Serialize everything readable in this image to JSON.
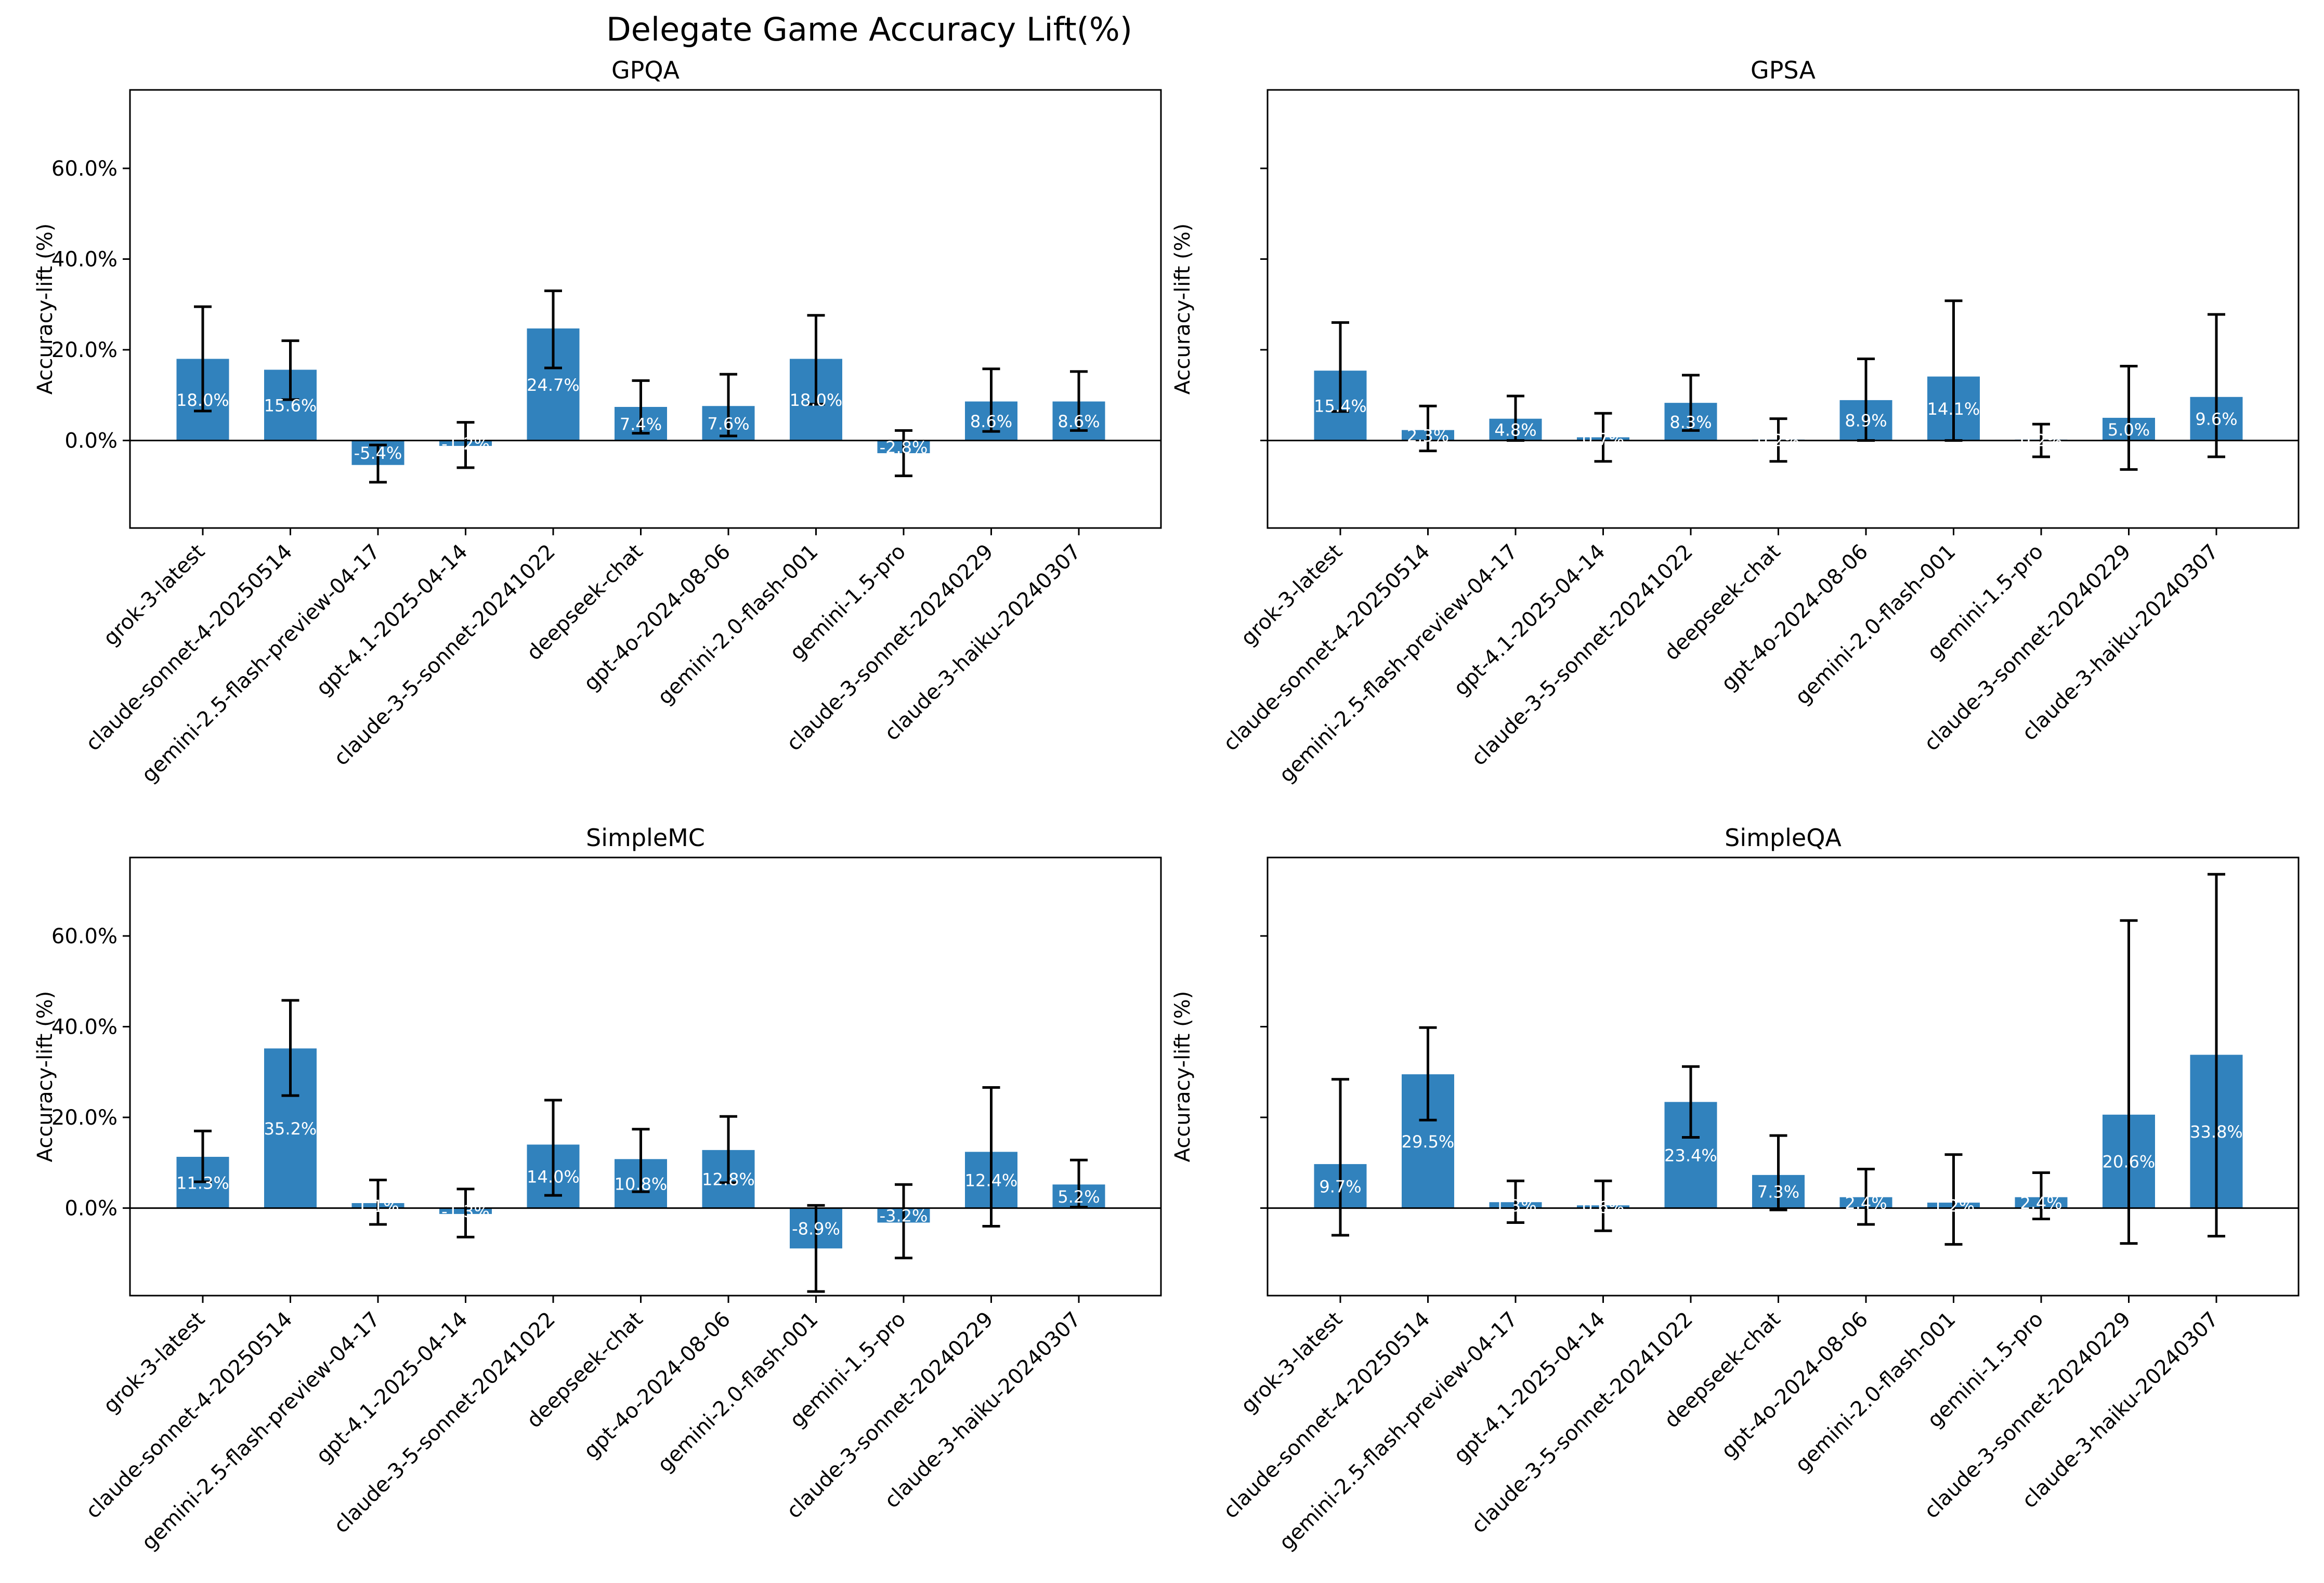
{
  "figure": {
    "title": "Delegate Game Accuracy Lift(%)"
  },
  "colors": {
    "bar": "#3182bd",
    "error_bar": "#000000",
    "frame": "#000000",
    "zero_line": "#000000",
    "label_text": "#ffffff"
  },
  "chart_data": [
    {
      "type": "bar",
      "title": "GPQA",
      "ylabel": "Accuracy-lift (%)",
      "xlabel": "",
      "ylim": [
        -19.3,
        77.3
      ],
      "yticks": [
        0,
        20,
        40,
        60
      ],
      "ytick_labels": [
        "0.0%",
        "20.0%",
        "40.0%",
        "60.0%"
      ],
      "show_ytick_labels": true,
      "categories": [
        "grok-3-latest",
        "claude-sonnet-4-20250514",
        "gemini-2.5-flash-preview-04-17",
        "gpt-4.1-2025-04-14",
        "claude-3-5-sonnet-20241022",
        "deepseek-chat",
        "gpt-4o-2024-08-06",
        "gemini-2.0-flash-001",
        "gemini-1.5-pro",
        "claude-3-sonnet-20240229",
        "claude-3-haiku-20240307"
      ],
      "values": [
        18.0,
        15.6,
        -5.4,
        -1.2,
        24.7,
        7.4,
        7.6,
        18.0,
        -2.8,
        8.6,
        8.6
      ],
      "labels": [
        "18.0%",
        "15.6%",
        "-5.4%",
        "-1.2%",
        "24.7%",
        "7.4%",
        "7.6%",
        "18.0%",
        "-2.8%",
        "8.6%",
        "8.6%"
      ],
      "err_low": [
        6.5,
        9.0,
        -9.2,
        -6.0,
        16.0,
        1.6,
        1.0,
        8.0,
        -7.8,
        2.0,
        2.2
      ],
      "err_high": [
        29.5,
        22.0,
        -1.0,
        4.0,
        33.0,
        13.2,
        14.6,
        27.6,
        2.2,
        15.8,
        15.2
      ]
    },
    {
      "type": "bar",
      "title": "GPSA",
      "ylabel": "Accuracy-lift (%)",
      "xlabel": "",
      "ylim": [
        -19.3,
        77.3
      ],
      "yticks": [
        0,
        20,
        40,
        60
      ],
      "ytick_labels": [
        "0.0%",
        "20.0%",
        "40.0%",
        "60.0%"
      ],
      "show_ytick_labels": false,
      "categories": [
        "grok-3-latest",
        "claude-sonnet-4-20250514",
        "gemini-2.5-flash-preview-04-17",
        "gpt-4.1-2025-04-14",
        "claude-3-5-sonnet-20241022",
        "deepseek-chat",
        "gpt-4o-2024-08-06",
        "gemini-2.0-flash-001",
        "gemini-1.5-pro",
        "claude-3-sonnet-20240229",
        "claude-3-haiku-20240307"
      ],
      "values": [
        15.4,
        2.3,
        4.8,
        0.7,
        8.3,
        0.2,
        8.9,
        14.1,
        0.2,
        5.0,
        9.6
      ],
      "labels": [
        "15.4%",
        "2.3%",
        "4.8%",
        "0.7%",
        "8.3%",
        "0.2%",
        "8.9%",
        "14.1%",
        "0.2%",
        "5.0%",
        "9.6%"
      ],
      "err_low": [
        6.4,
        -2.3,
        0.0,
        -4.6,
        2.2,
        -4.6,
        0.0,
        0.0,
        -3.6,
        -6.4,
        -3.6
      ],
      "err_high": [
        26.0,
        7.6,
        9.8,
        6.0,
        14.4,
        4.8,
        18.0,
        30.8,
        3.6,
        16.4,
        27.8
      ]
    },
    {
      "type": "bar",
      "title": "SimpleMC",
      "ylabel": "Accuracy-lift (%)",
      "xlabel": "",
      "ylim": [
        -19.3,
        77.3
      ],
      "yticks": [
        0,
        20,
        40,
        60
      ],
      "ytick_labels": [
        "0.0%",
        "20.0%",
        "40.0%",
        "60.0%"
      ],
      "show_ytick_labels": true,
      "categories": [
        "grok-3-latest",
        "claude-sonnet-4-20250514",
        "gemini-2.5-flash-preview-04-17",
        "gpt-4.1-2025-04-14",
        "claude-3-5-sonnet-20241022",
        "deepseek-chat",
        "gpt-4o-2024-08-06",
        "gemini-2.0-flash-001",
        "gemini-1.5-pro",
        "claude-3-sonnet-20240229",
        "claude-3-haiku-20240307"
      ],
      "values": [
        11.3,
        35.2,
        1.1,
        -1.3,
        14.0,
        10.8,
        12.8,
        -8.9,
        -3.2,
        12.4,
        5.2
      ],
      "labels": [
        "11.3%",
        "35.2%",
        "1.1%",
        "-1.3%",
        "14.0%",
        "10.8%",
        "12.8%",
        "-8.9%",
        "-3.2%",
        "12.4%",
        "5.2%"
      ],
      "err_low": [
        5.8,
        24.8,
        -3.6,
        -6.4,
        2.8,
        3.6,
        5.6,
        -18.4,
        -11.0,
        -4.0,
        0.2
      ],
      "err_high": [
        17.0,
        45.8,
        6.2,
        4.2,
        23.8,
        17.4,
        20.2,
        0.6,
        5.2,
        26.6,
        10.6
      ]
    },
    {
      "type": "bar",
      "title": "SimpleQA",
      "ylabel": "Accuracy-lift (%)",
      "xlabel": "",
      "ylim": [
        -19.3,
        77.3
      ],
      "yticks": [
        0,
        20,
        40,
        60
      ],
      "ytick_labels": [
        "0.0%",
        "20.0%",
        "40.0%",
        "60.0%"
      ],
      "show_ytick_labels": false,
      "categories": [
        "grok-3-latest",
        "claude-sonnet-4-20250514",
        "gemini-2.5-flash-preview-04-17",
        "gpt-4.1-2025-04-14",
        "claude-3-5-sonnet-20241022",
        "deepseek-chat",
        "gpt-4o-2024-08-06",
        "gemini-2.0-flash-001",
        "gemini-1.5-pro",
        "claude-3-sonnet-20240229",
        "claude-3-haiku-20240307"
      ],
      "values": [
        9.7,
        29.5,
        1.3,
        0.6,
        23.4,
        7.3,
        2.4,
        1.2,
        2.4,
        20.6,
        33.8
      ],
      "labels": [
        "9.7%",
        "29.5%",
        "1.3%",
        "0.6%",
        "23.4%",
        "7.3%",
        "2.4%",
        "1.2%",
        "2.4%",
        "20.6%",
        "33.8%"
      ],
      "err_low": [
        -6.0,
        19.4,
        -3.2,
        -5.0,
        15.6,
        -0.4,
        -3.6,
        -8.0,
        -2.4,
        -7.8,
        -6.2
      ],
      "err_high": [
        28.4,
        39.8,
        6.0,
        6.0,
        31.2,
        16.0,
        8.6,
        11.8,
        7.8,
        63.4,
        73.6
      ]
    }
  ]
}
